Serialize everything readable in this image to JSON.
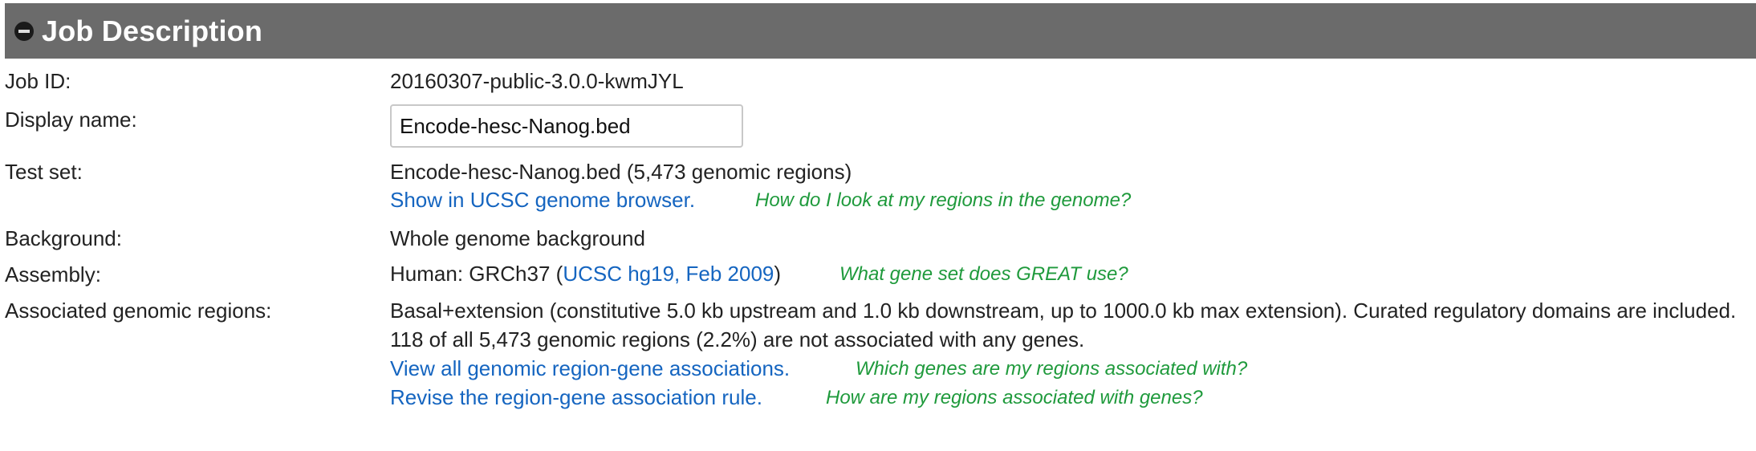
{
  "header": {
    "title": "Job Description",
    "collapse_icon": "minus-circle-icon"
  },
  "job_id": {
    "label": "Job ID:",
    "value": "20160307-public-3.0.0-kwmJYL"
  },
  "display_name": {
    "label": "Display name:",
    "value": "Encode-hesc-Nanog.bed"
  },
  "test_set": {
    "label": "Test set:",
    "value": "Encode-hesc-Nanog.bed (5,473 genomic regions)",
    "link": "Show in UCSC genome browser.",
    "help": "How do I look at my regions in the genome?"
  },
  "background": {
    "label": "Background:",
    "value": "Whole genome background"
  },
  "assembly": {
    "label": "Assembly:",
    "prefix": "Human: GRCh37 (",
    "link": "UCSC hg19, Feb 2009",
    "suffix": ")",
    "help": "What gene set does GREAT use?"
  },
  "associated": {
    "label": "Associated genomic regions:",
    "line1": "Basal+extension (constitutive 5.0 kb upstream and 1.0 kb downstream, up to 1000.0 kb max extension). Curated regulatory domains are included.",
    "line2": "118 of all 5,473 genomic regions (2.2%) are not associated with any genes.",
    "link1": "View all genomic region-gene associations.",
    "help1": "Which genes are my regions associated with?",
    "link2": "Revise the region-gene association rule.",
    "help2": "How are my regions associated with genes?"
  },
  "colors": {
    "header_bg": "#6b6b6b",
    "link": "#1565c0",
    "help": "#1f9a3c"
  }
}
